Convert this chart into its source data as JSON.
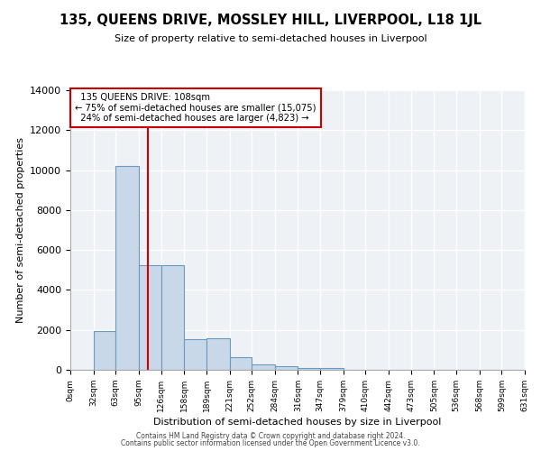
{
  "title": "135, QUEENS DRIVE, MOSSLEY HILL, LIVERPOOL, L18 1JL",
  "subtitle": "Size of property relative to semi-detached houses in Liverpool",
  "xlabel": "Distribution of semi-detached houses by size in Liverpool",
  "ylabel": "Number of semi-detached properties",
  "property_size": 108,
  "property_label": "135 QUEENS DRIVE: 108sqm",
  "pct_smaller": 75,
  "pct_larger": 24,
  "count_smaller": 15075,
  "count_larger": 4823,
  "bar_color": "#c8d8e8",
  "bar_edge_color": "#6a9abf",
  "vline_color": "#cc0000",
  "annotation_box_color": "#cc0000",
  "background_color": "#eef2f7",
  "bin_edges": [
    0,
    32,
    63,
    95,
    126,
    158,
    189,
    221,
    252,
    284,
    316,
    347,
    379,
    410,
    442,
    473,
    505,
    536,
    568,
    599,
    631
  ],
  "bin_counts": [
    0,
    1950,
    10200,
    5250,
    5250,
    1550,
    1580,
    620,
    280,
    160,
    110,
    110,
    0,
    0,
    0,
    0,
    0,
    0,
    0,
    0
  ],
  "ylim": [
    0,
    14000
  ],
  "yticks": [
    0,
    2000,
    4000,
    6000,
    8000,
    10000,
    12000,
    14000
  ],
  "footer1": "Contains HM Land Registry data © Crown copyright and database right 2024.",
  "footer2": "Contains public sector information licensed under the Open Government Licence v3.0."
}
